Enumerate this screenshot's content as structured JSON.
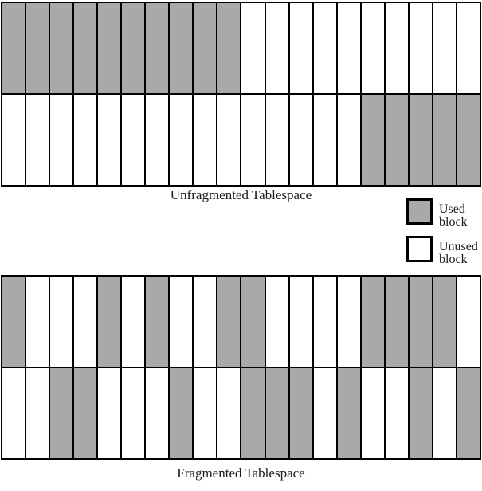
{
  "colors": {
    "used_block": "#a9a9a9",
    "unused_block": "#ffffff",
    "border": "#000000",
    "background": "#ffffff"
  },
  "legend": {
    "items": [
      {
        "key": "used",
        "label": "Used block"
      },
      {
        "key": "unused",
        "label": "Unused block"
      }
    ]
  },
  "diagrams": [
    {
      "name": "unfragmented",
      "label": "Unfragmented Tablespace",
      "blocks_per_row": 20,
      "rows": [
        [
          1,
          1,
          1,
          1,
          1,
          1,
          1,
          1,
          1,
          1,
          0,
          0,
          0,
          0,
          0,
          0,
          0,
          0,
          0,
          0
        ],
        [
          0,
          0,
          0,
          0,
          0,
          0,
          0,
          0,
          0,
          0,
          0,
          0,
          0,
          0,
          0,
          1,
          1,
          1,
          1,
          1
        ]
      ]
    },
    {
      "name": "fragmented",
      "label": "Fragmented Tablespace",
      "blocks_per_row": 20,
      "rows": [
        [
          1,
          0,
          0,
          0,
          1,
          0,
          1,
          0,
          0,
          1,
          1,
          0,
          0,
          0,
          0,
          1,
          1,
          1,
          1,
          0
        ],
        [
          0,
          0,
          1,
          1,
          0,
          0,
          0,
          1,
          0,
          0,
          1,
          1,
          1,
          0,
          1,
          0,
          0,
          1,
          0,
          1
        ]
      ]
    }
  ]
}
